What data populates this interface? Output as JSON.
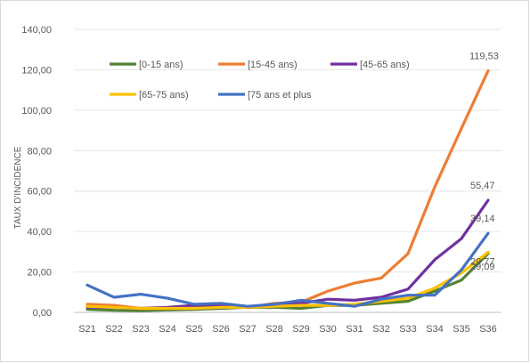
{
  "chart_data": {
    "type": "line",
    "title": "",
    "xlabel": "",
    "ylabel": "TAUX D'INCIDENCE",
    "ylim": [
      0,
      140
    ],
    "y_ticks": [
      "0,00",
      "20,00",
      "40,00",
      "60,00",
      "80,00",
      "100,00",
      "120,00",
      "140,00"
    ],
    "grid": true,
    "legend_position": "inside-top",
    "categories": [
      "S21",
      "S22",
      "S23",
      "S24",
      "S25",
      "S26",
      "S27",
      "S28",
      "S29",
      "S30",
      "S31",
      "S32",
      "S33",
      "S34",
      "S35",
      "S36"
    ],
    "series": [
      {
        "name": "[0-15 ans)",
        "color": "#548235",
        "values": [
          1.5,
          1.0,
          0.8,
          1.2,
          1.5,
          2.0,
          2.5,
          2.5,
          2.0,
          3.5,
          3.5,
          4.5,
          5.5,
          10.5,
          16.0,
          29.09
        ]
      },
      {
        "name": "[15-45 ans)",
        "color": "#ED7D31",
        "values": [
          4.0,
          3.5,
          2.0,
          2.0,
          2.5,
          3.0,
          2.5,
          4.5,
          5.0,
          10.5,
          14.5,
          17.0,
          29.0,
          62.0,
          91.0,
          119.53
        ]
      },
      {
        "name": "[45-65 ans)",
        "color": "#7030A0",
        "values": [
          2.5,
          2.5,
          2.0,
          2.5,
          3.5,
          3.5,
          2.5,
          3.0,
          4.5,
          6.5,
          6.0,
          7.5,
          11.5,
          26.0,
          36.5,
          55.47
        ]
      },
      {
        "name": "[65-75 ans)",
        "color": "#FFC000",
        "values": [
          3.0,
          2.5,
          2.0,
          2.0,
          2.0,
          2.5,
          2.5,
          3.0,
          3.5,
          3.5,
          4.0,
          5.5,
          7.0,
          12.0,
          19.5,
          29.77
        ]
      },
      {
        "name": "[75 ans et plus",
        "color": "#4472C4",
        "values": [
          13.5,
          7.5,
          9.0,
          7.0,
          4.0,
          4.5,
          3.0,
          4.0,
          6.0,
          4.5,
          3.0,
          6.5,
          8.5,
          8.5,
          21.0,
          39.14
        ]
      }
    ],
    "data_labels": [
      {
        "series": 1,
        "index": 15,
        "text": "119,53"
      },
      {
        "series": 2,
        "index": 15,
        "text": "55,47"
      },
      {
        "series": 4,
        "index": 15,
        "text": "39,14"
      },
      {
        "series": 3,
        "index": 15,
        "text": "29,77"
      },
      {
        "series": 0,
        "index": 15,
        "text": "29,09"
      }
    ]
  }
}
